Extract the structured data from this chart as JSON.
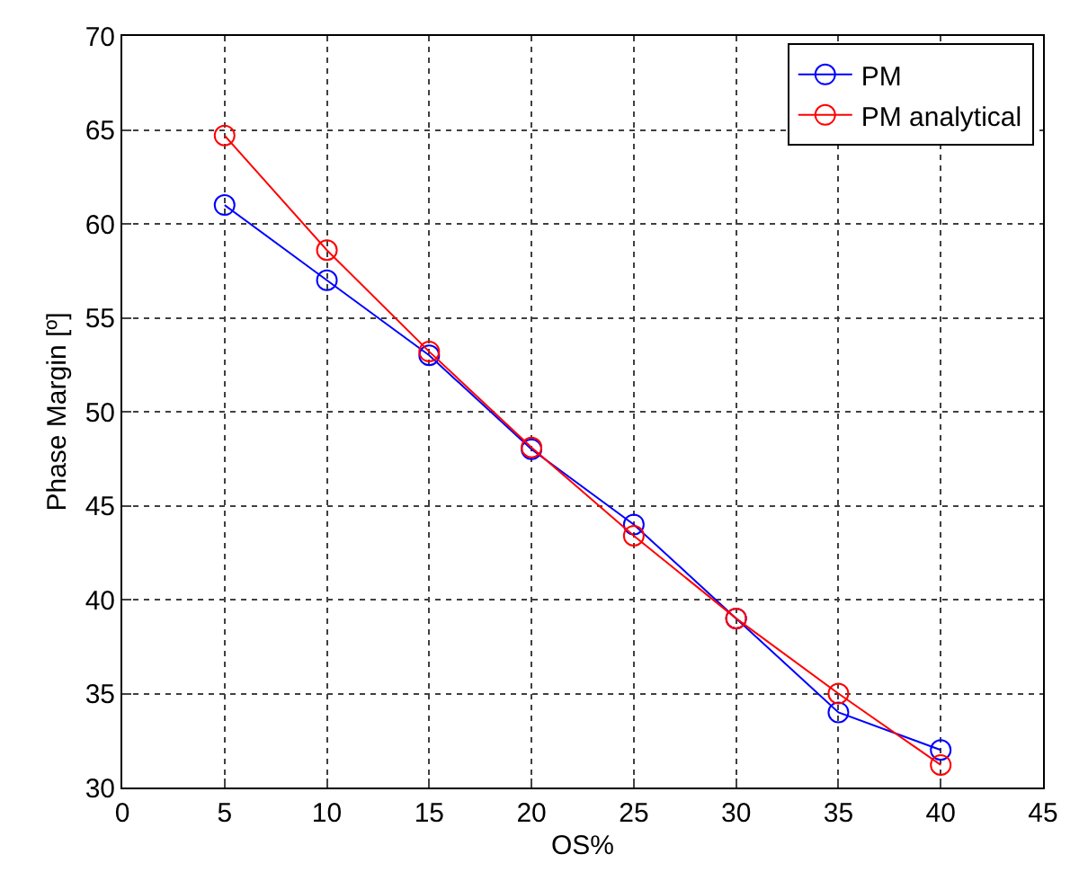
{
  "chart_data": {
    "type": "line",
    "xlabel": "OS%",
    "ylabel": "Phase Margin [º]",
    "x": [
      5,
      10,
      15,
      20,
      25,
      30,
      35,
      40
    ],
    "series": [
      {
        "name": "PM",
        "color": "#0000ff",
        "values": [
          61,
          57,
          53,
          48,
          44,
          39,
          34,
          32
        ]
      },
      {
        "name": "PM analytical",
        "color": "#ff0000",
        "values": [
          64.7,
          58.6,
          53.2,
          48.1,
          43.4,
          39,
          35,
          31.2
        ]
      }
    ],
    "xlim": [
      0,
      45
    ],
    "xticks": [
      0,
      5,
      10,
      15,
      20,
      25,
      30,
      35,
      40,
      45
    ],
    "ylim": [
      30,
      70
    ],
    "yticks": [
      30,
      35,
      40,
      45,
      50,
      55,
      60,
      65,
      70
    ],
    "grid": true,
    "legend": "top right",
    "marker": "circle",
    "line_style": "solid"
  }
}
